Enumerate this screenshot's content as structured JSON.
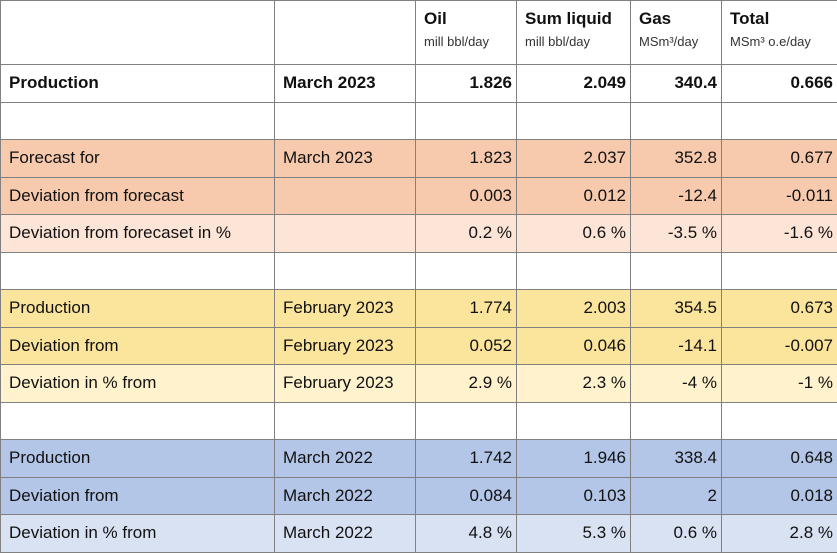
{
  "header": {
    "empty1": "",
    "empty2": "",
    "oil": {
      "name": "Oil",
      "unit": "mill bbl/day"
    },
    "sum_liquid": {
      "name": "Sum liquid",
      "unit": "mill bbl/day"
    },
    "gas": {
      "name": "Gas",
      "unit": "MSm³/day"
    },
    "total": {
      "name": "Total",
      "unit": "MSm³ o.e/day"
    }
  },
  "production": {
    "label": "Production",
    "period": "March 2023",
    "oil": "1.826",
    "sum_liquid": "2.049",
    "gas": "340.4",
    "total": "0.666"
  },
  "forecast": [
    {
      "label": "Forecast for",
      "period": "March 2023",
      "oil": "1.823",
      "sum_liquid": "2.037",
      "gas": "352.8",
      "total": "0.677"
    },
    {
      "label": "Deviation from forecast",
      "period": "",
      "oil": "0.003",
      "sum_liquid": "0.012",
      "gas": "-12.4",
      "total": "-0.011"
    },
    {
      "label": "Deviation from forecaset in %",
      "period": "",
      "oil": "0.2 %",
      "sum_liquid": "0.6 %",
      "gas": "-3.5 %",
      "total": "-1.6 %"
    }
  ],
  "february": [
    {
      "label": "Production",
      "period": "February 2023",
      "oil": "1.774",
      "sum_liquid": "2.003",
      "gas": "354.5",
      "total": "0.673"
    },
    {
      "label": "Deviation from",
      "period": "February 2023",
      "oil": "0.052",
      "sum_liquid": "0.046",
      "gas": "-14.1",
      "total": "-0.007"
    },
    {
      "label": "Deviation in % from",
      "period": "February 2023",
      "oil": "2.9 %",
      "sum_liquid": "2.3 %",
      "gas": "-4 %",
      "total": "-1 %"
    }
  ],
  "march2022": [
    {
      "label": "Production",
      "period": "March 2022",
      "oil": "1.742",
      "sum_liquid": "1.946",
      "gas": "338.4",
      "total": "0.648"
    },
    {
      "label": "Deviation from",
      "period": "March 2022",
      "oil": "0.084",
      "sum_liquid": "0.103",
      "gas": "2",
      "total": "0.018"
    },
    {
      "label": "Deviation in % from",
      "period": "March 2022",
      "oil": "4.8 %",
      "sum_liquid": "5.3 %",
      "gas": "0.6 %",
      "total": "2.8 %"
    }
  ],
  "colors": {
    "forecast_dark": "#f7c9ad",
    "forecast_light": "#fce4d6",
    "february_dark": "#fbe49c",
    "february_light": "#fff2cc",
    "march2022_dark": "#b3c6e7",
    "march2022_light": "#d9e2f3",
    "border": "#808080"
  }
}
